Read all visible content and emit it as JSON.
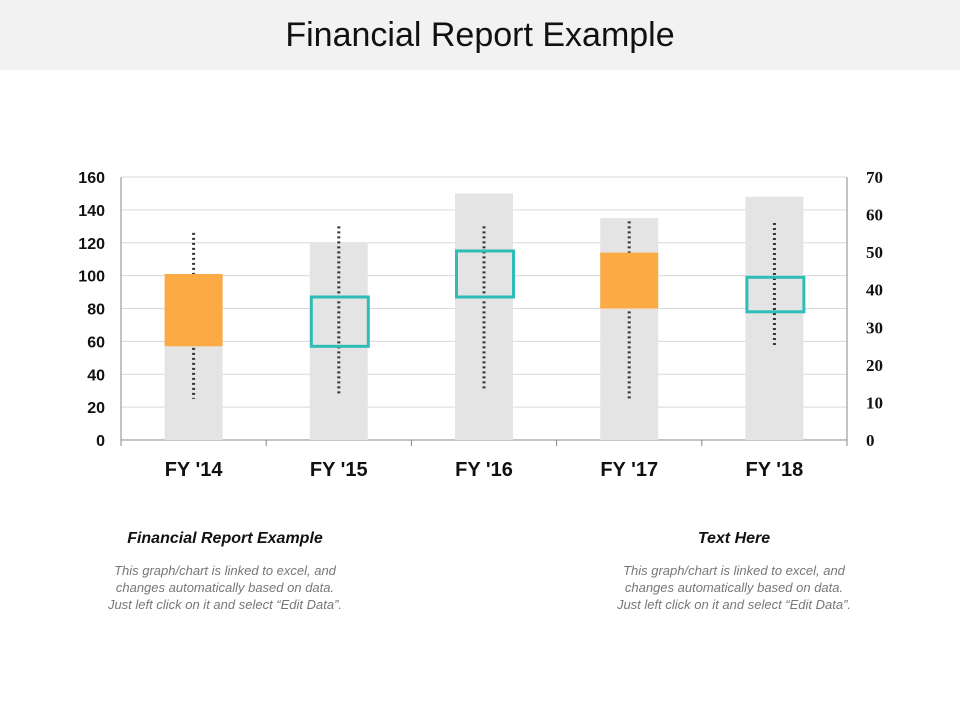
{
  "header": {
    "title": "Financial Report Example"
  },
  "chart_data": {
    "type": "bar",
    "categories": [
      "FY '14",
      "FY '15",
      "FY '16",
      "FY '17",
      "FY '18"
    ],
    "background_values": [
      101,
      120,
      150,
      135,
      148
    ],
    "box_low": [
      57,
      57,
      87,
      80,
      78
    ],
    "box_high": [
      101,
      87,
      115,
      114,
      99
    ],
    "box_style": [
      "filled",
      "outline",
      "outline",
      "filled",
      "outline"
    ],
    "whisker_low": [
      25,
      27,
      30,
      25,
      57
    ],
    "whisker_high": [
      126,
      130,
      130,
      133,
      132
    ],
    "y_left": {
      "ticks": [
        "0",
        "20",
        "40",
        "60",
        "80",
        "100",
        "120",
        "140",
        "160"
      ],
      "range": [
        0,
        160
      ]
    },
    "y_right": {
      "ticks": [
        "0",
        "10",
        "20",
        "30",
        "40",
        "50",
        "60",
        "70"
      ],
      "range": [
        0,
        70
      ]
    },
    "grid": true,
    "colors": {
      "background_bar": "#e4e4e4",
      "filled_box": "#fbaa46",
      "outline_box": "#2ebdb6",
      "whisker": "#333333",
      "grid": "#d9d9d9"
    }
  },
  "notes": [
    {
      "title": "Financial Report Example",
      "body": "This graph/chart is linked to excel, and changes automatically based on data. Just left click on it and select “Edit Data”."
    },
    {
      "title": "Text Here",
      "body": "This graph/chart is linked to excel, and changes automatically based on data. Just left click on it and select “Edit Data”."
    }
  ]
}
